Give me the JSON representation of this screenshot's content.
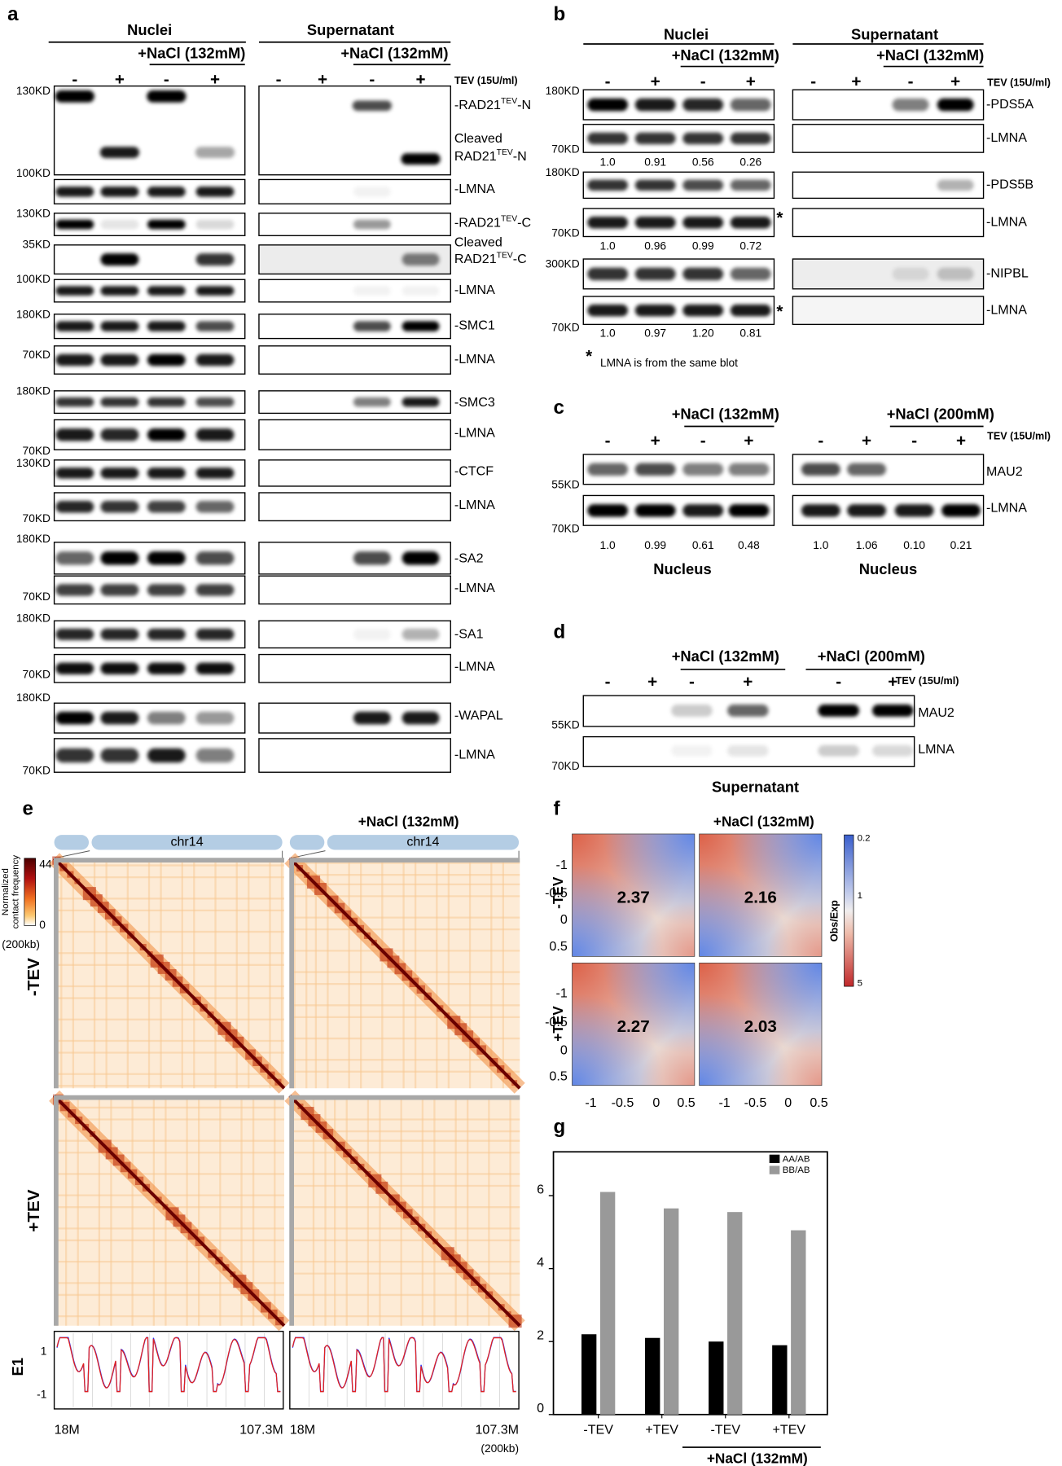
{
  "panel_a": {
    "letter": "a",
    "nuclei": "Nuclei",
    "supernatant": "Supernatant",
    "nacl": "+NaCl (132mM)",
    "signs": [
      "-",
      "+",
      "-",
      "+"
    ],
    "tev": "TEV (15U/ml)",
    "kd": [
      "130KD",
      "100KD",
      "130KD",
      "35KD",
      "100KD",
      "180KD",
      "70KD",
      "180KD",
      "70KD",
      "130KD",
      "70KD",
      "180KD",
      "70KD",
      "180KD",
      "70KD",
      "180KD",
      "70KD"
    ],
    "labels": [
      {
        "text": "-RAD21",
        "sup": "TEV",
        "after": "-N"
      },
      {
        "text": "Cleaved"
      },
      {
        "text": "RAD21",
        "sup": "TEV",
        "after": "-N"
      },
      {
        "text": "-LMNA"
      },
      {
        "text": "-RAD21",
        "sup": "TEV",
        "after": "-C"
      },
      {
        "text": "Cleaved"
      },
      {
        "text": "RAD21",
        "sup": "TEV",
        "after": "-C"
      },
      {
        "text": "-LMNA"
      },
      {
        "text": "-SMC1"
      },
      {
        "text": "-LMNA"
      },
      {
        "text": "-SMC3"
      },
      {
        "text": "-LMNA"
      },
      {
        "text": "-CTCF"
      },
      {
        "text": "-LMNA"
      },
      {
        "text": "-SA2"
      },
      {
        "text": "-LMNA"
      },
      {
        "text": "-SA1"
      },
      {
        "text": "-LMNA"
      },
      {
        "text": "-WAPAL"
      },
      {
        "text": "-LMNA"
      }
    ]
  },
  "panel_b": {
    "letter": "b",
    "nuclei": "Nuclei",
    "supernatant": "Supernatant",
    "nacl": "+NaCl (132mM)",
    "signs": [
      "-",
      "+",
      "-",
      "+"
    ],
    "tev": "TEV (15U/ml)",
    "kd": [
      "180KD",
      "70KD",
      "180KD",
      "70KD",
      "300KD",
      "70KD"
    ],
    "labels": [
      "-PDS5A",
      "-LMNA",
      "-PDS5B",
      "-LMNA",
      "-NIPBL",
      "-LMNA"
    ],
    "ratios": [
      [
        "1.0",
        "0.91",
        "0.56",
        "0.26"
      ],
      [
        "1.0",
        "0.96",
        "0.99",
        "0.72"
      ],
      [
        "1.0",
        "0.97",
        "1.20",
        "0.81"
      ]
    ],
    "star": "*",
    "note": "LMNA is from the same blot"
  },
  "panel_c": {
    "letter": "c",
    "nacl_132": "+NaCl (132mM)",
    "nacl_200": "+NaCl (200mM)",
    "signs": [
      "-",
      "+",
      "-",
      "+"
    ],
    "tev": "TEV (15U/ml)",
    "kd": [
      "55KD",
      "70KD"
    ],
    "labels": [
      "MAU2",
      "-LMNA"
    ],
    "ratios": [
      [
        "1.0",
        "0.99",
        "0.61",
        "0.48"
      ],
      [
        "1.0",
        "1.06",
        "0.10",
        "0.21"
      ]
    ],
    "caption": "Nucleus"
  },
  "panel_d": {
    "letter": "d",
    "nacl_132": "+NaCl (132mM)",
    "nacl_200": "+NaCl (200mM)",
    "signs": [
      "-",
      "+",
      "-",
      "+",
      "-",
      "+"
    ],
    "tev": "TEV (15U/ml)",
    "kd": [
      "55KD",
      "70KD"
    ],
    "labels": [
      "MAU2",
      "LMNA"
    ],
    "caption": "Supernatant"
  },
  "panel_e": {
    "letter": "e",
    "nacl": "+NaCl (132mM)",
    "chrom": "chr14",
    "colorbar_max": "44",
    "colorbar_min": "0",
    "colorbar_label": [
      "Normalized",
      "contact frequency"
    ],
    "resolution": "(200kb)",
    "rows": [
      "-TEV",
      "+TEV"
    ],
    "track": "E1",
    "track_ticks": [
      "1",
      "-1"
    ],
    "start": "18M",
    "end": "107.3M"
  },
  "panel_f": {
    "letter": "f",
    "nacl": "+NaCl (132mM)",
    "rows": [
      "-TEV",
      "+TEV"
    ],
    "values": [
      [
        "2.37",
        "2.16"
      ],
      [
        "2.27",
        "2.03"
      ]
    ],
    "ticks": [
      "-1",
      "-0.5",
      "0",
      "0.5"
    ],
    "colorbar": [
      "0.2",
      "1",
      "5"
    ],
    "colorbar_label": "Obs/Exp"
  },
  "chart_data": {
    "type": "bar",
    "label": "g",
    "categories": [
      "-TEV",
      "+TEV",
      "-TEV",
      "+TEV"
    ],
    "series": [
      {
        "name": "AA/AB",
        "color": "#000000",
        "values": [
          2.2,
          2.1,
          2.0,
          1.9
        ]
      },
      {
        "name": "BB/AB",
        "color": "#999999",
        "values": [
          6.1,
          5.65,
          5.55,
          5.05
        ]
      }
    ],
    "ylim": [
      0,
      7.2
    ],
    "yticks": [
      0,
      2,
      4,
      6
    ],
    "annotation": "+NaCl (132mM)"
  }
}
